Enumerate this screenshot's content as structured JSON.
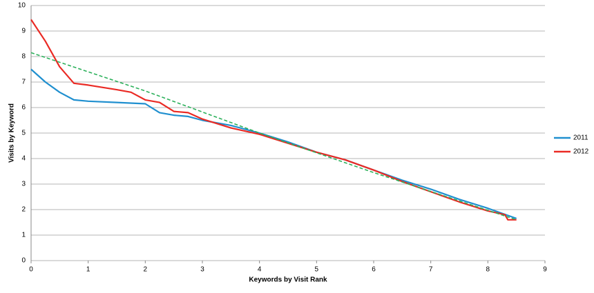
{
  "chart_data": {
    "type": "line",
    "x_label": "Keywords by Visit Rank",
    "y_label": "Visits by Keyword",
    "xlim": [
      0,
      9
    ],
    "xticks": [
      0,
      1,
      2,
      3,
      4,
      5,
      6,
      7,
      8,
      9
    ],
    "ylim": [
      0,
      10
    ],
    "yticks": [
      0,
      1,
      2,
      3,
      4,
      5,
      6,
      7,
      8,
      9,
      10
    ],
    "grid": true,
    "legend": "right",
    "series": [
      {
        "name": "2011",
        "color": "#1f8fcf",
        "x": [
          0,
          0.25,
          0.5,
          0.75,
          1,
          1.5,
          2,
          2.25,
          2.5,
          2.75,
          3,
          3.5,
          4,
          4.5,
          5,
          5.5,
          6,
          6.5,
          7,
          7.5,
          8,
          8.5
        ],
        "values": [
          7.5,
          7.0,
          6.6,
          6.3,
          6.25,
          6.2,
          6.15,
          5.8,
          5.7,
          5.65,
          5.5,
          5.3,
          5.0,
          4.65,
          4.25,
          3.95,
          3.55,
          3.15,
          2.8,
          2.4,
          2.05,
          1.65
        ]
      },
      {
        "name": "2012",
        "color": "#ea2a24",
        "x": [
          0,
          0.25,
          0.5,
          0.75,
          1,
          1.5,
          1.75,
          2,
          2.25,
          2.5,
          2.75,
          3,
          3.5,
          4,
          4.5,
          5,
          5.5,
          6,
          6.5,
          7,
          7.5,
          8,
          8.3,
          8.35,
          8.5
        ],
        "values": [
          9.45,
          8.6,
          7.6,
          6.95,
          6.88,
          6.7,
          6.6,
          6.3,
          6.2,
          5.85,
          5.8,
          5.55,
          5.2,
          4.95,
          4.6,
          4.25,
          3.95,
          3.55,
          3.1,
          2.7,
          2.3,
          1.95,
          1.8,
          1.6,
          1.6
        ]
      },
      {
        "color": "#2bb05a",
        "dashed": true,
        "x": [
          0,
          2,
          4,
          6,
          8.5
        ],
        "values": [
          8.15,
          6.65,
          5.0,
          3.45,
          1.6
        ]
      }
    ]
  }
}
